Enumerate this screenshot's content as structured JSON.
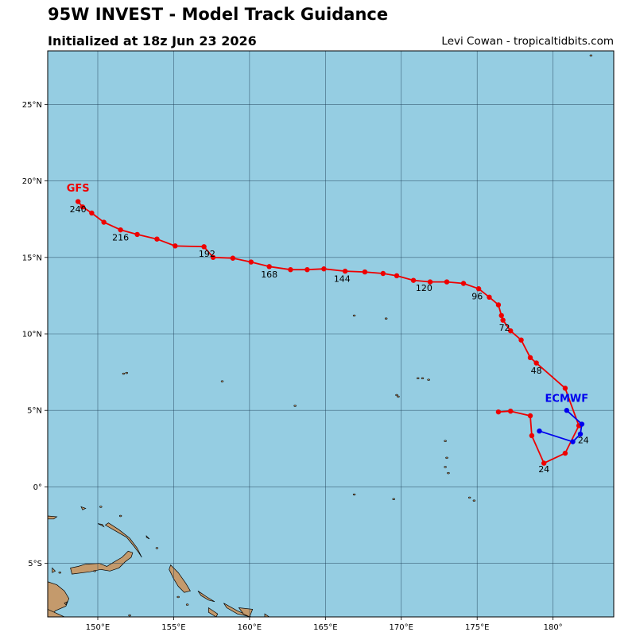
{
  "header": {
    "title": "95W INVEST - Model Track Guidance",
    "subtitle": "Initialized at 18z Jun 23 2026",
    "credit": "Levi Cowan - tropicaltidbits.com"
  },
  "colors": {
    "ocean": "#95cde2",
    "land": "#c49a6c",
    "gfs": "#ee0000",
    "ecmwf": "#0000ee",
    "grid": "#1f3f55"
  },
  "chart_data": {
    "type": "map-track",
    "lon_range": [
      146.7,
      184.0
    ],
    "lat_range": [
      -8.5,
      28.5
    ],
    "lon_ticks": [
      {
        "value": 150,
        "label": "150°E"
      },
      {
        "value": 155,
        "label": "155°E"
      },
      {
        "value": 160,
        "label": "160°E"
      },
      {
        "value": 165,
        "label": "165°E"
      },
      {
        "value": 170,
        "label": "170°E"
      },
      {
        "value": 175,
        "label": "175°E"
      },
      {
        "value": 180,
        "label": "180°"
      }
    ],
    "lat_ticks": [
      {
        "value": -5,
        "label": "5°S"
      },
      {
        "value": 0,
        "label": "0°"
      },
      {
        "value": 5,
        "label": "5°N"
      },
      {
        "value": 10,
        "label": "10°N"
      },
      {
        "value": 15,
        "label": "15°N"
      },
      {
        "value": 20,
        "label": "20°N"
      },
      {
        "value": 25,
        "label": "25°N"
      }
    ],
    "grid": true,
    "series": [
      {
        "name": "GFS",
        "color": "#ee0000",
        "points": [
          [
            176.4,
            4.9
          ],
          [
            177.2,
            4.95
          ],
          [
            178.5,
            4.65
          ],
          [
            178.6,
            3.35
          ],
          [
            179.4,
            1.55
          ],
          [
            180.8,
            2.2
          ],
          [
            181.7,
            4.0
          ],
          [
            180.8,
            6.45
          ],
          [
            178.9,
            8.1
          ],
          [
            178.5,
            8.45
          ],
          [
            177.9,
            9.6
          ],
          [
            177.2,
            10.2
          ],
          [
            176.7,
            10.9
          ],
          [
            176.6,
            11.2
          ],
          [
            176.4,
            11.9
          ],
          [
            175.8,
            12.4
          ],
          [
            175.1,
            12.95
          ],
          [
            174.1,
            13.3
          ],
          [
            173.0,
            13.4
          ],
          [
            171.9,
            13.4
          ],
          [
            170.8,
            13.5
          ],
          [
            169.7,
            13.8
          ],
          [
            168.8,
            13.95
          ],
          [
            167.6,
            14.05
          ],
          [
            166.3,
            14.1
          ],
          [
            164.9,
            14.25
          ],
          [
            163.8,
            14.2
          ],
          [
            162.7,
            14.2
          ],
          [
            161.3,
            14.4
          ],
          [
            160.1,
            14.7
          ],
          [
            158.9,
            14.95
          ],
          [
            157.6,
            15.0
          ],
          [
            157.0,
            15.7
          ],
          [
            155.1,
            15.75
          ],
          [
            153.9,
            16.2
          ],
          [
            152.6,
            16.5
          ],
          [
            151.5,
            16.8
          ],
          [
            150.4,
            17.3
          ],
          [
            149.6,
            17.9
          ],
          [
            149.0,
            18.3
          ],
          [
            148.7,
            18.65
          ]
        ],
        "labels": [
          {
            "text": "24",
            "lon": 179.4,
            "lat": 0.95
          },
          {
            "text": "48",
            "lon": 178.9,
            "lat": 7.4
          },
          {
            "text": "72",
            "lon": 176.8,
            "lat": 10.2
          },
          {
            "text": "96",
            "lon": 175.0,
            "lat": 12.25
          },
          {
            "text": "120",
            "lon": 171.5,
            "lat": 12.8
          },
          {
            "text": "144",
            "lon": 166.1,
            "lat": 13.4
          },
          {
            "text": "168",
            "lon": 161.3,
            "lat": 13.7
          },
          {
            "text": "192",
            "lon": 157.2,
            "lat": 15.05
          },
          {
            "text": "216",
            "lon": 151.5,
            "lat": 16.1
          },
          {
            "text": "240",
            "lon": 148.7,
            "lat": 17.95
          }
        ],
        "model_label": {
          "text": "GFS",
          "lon": 148.7,
          "lat": 19.3
        }
      },
      {
        "name": "ECMWF",
        "color": "#0000ee",
        "points": [
          [
            180.9,
            5.0
          ],
          [
            181.9,
            4.1
          ],
          [
            181.8,
            3.45
          ],
          [
            181.3,
            2.95
          ],
          [
            179.1,
            3.65
          ]
        ],
        "labels": [
          {
            "text": "24",
            "lon": 182.0,
            "lat": 2.85
          }
        ],
        "model_label": {
          "text": "ECMWF",
          "lon": 180.9,
          "lat": 5.55
        }
      }
    ]
  },
  "land": {
    "islands": [
      [
        [
          146.7,
          -6.2
        ],
        [
          147.3,
          -6.4
        ],
        [
          147.8,
          -6.8
        ],
        [
          148.1,
          -7.3
        ],
        [
          147.9,
          -7.8
        ],
        [
          147.2,
          -8.1
        ],
        [
          146.9,
          -8.5
        ],
        [
          146.7,
          -8.5
        ]
      ],
      [
        [
          146.7,
          -8.0
        ],
        [
          147.8,
          -8.5
        ],
        [
          146.7,
          -8.5
        ]
      ],
      [
        [
          148.3,
          -5.7
        ],
        [
          149.5,
          -5.55
        ],
        [
          150.2,
          -5.4
        ],
        [
          150.8,
          -5.5
        ],
        [
          151.4,
          -5.3
        ],
        [
          151.8,
          -4.9
        ],
        [
          152.2,
          -4.6
        ],
        [
          152.3,
          -4.3
        ],
        [
          152.0,
          -4.2
        ],
        [
          151.6,
          -4.6
        ],
        [
          151.0,
          -4.95
        ],
        [
          150.6,
          -5.2
        ],
        [
          150.1,
          -5.0
        ],
        [
          149.2,
          -5.05
        ],
        [
          148.7,
          -5.2
        ],
        [
          148.2,
          -5.3
        ]
      ],
      [
        [
          150.5,
          -2.5
        ],
        [
          151.2,
          -2.9
        ],
        [
          151.9,
          -3.3
        ],
        [
          152.4,
          -3.9
        ],
        [
          152.7,
          -4.3
        ],
        [
          152.9,
          -4.6
        ],
        [
          152.6,
          -4.0
        ],
        [
          152.1,
          -3.35
        ],
        [
          151.4,
          -2.8
        ],
        [
          150.7,
          -2.35
        ]
      ],
      [
        [
          146.7,
          -1.9
        ],
        [
          147.3,
          -1.95
        ],
        [
          147.1,
          -2.1
        ],
        [
          146.7,
          -2.1
        ]
      ],
      [
        [
          150.0,
          -2.4
        ],
        [
          150.4,
          -2.6
        ],
        [
          150.3,
          -2.45
        ]
      ],
      [
        [
          154.8,
          -5.1
        ],
        [
          155.3,
          -5.6
        ],
        [
          155.8,
          -6.3
        ],
        [
          156.1,
          -6.8
        ],
        [
          155.7,
          -6.9
        ],
        [
          155.3,
          -6.5
        ],
        [
          155.0,
          -6.0
        ],
        [
          154.7,
          -5.4
        ]
      ],
      [
        [
          156.6,
          -6.8
        ],
        [
          157.2,
          -7.2
        ],
        [
          157.7,
          -7.5
        ],
        [
          157.3,
          -7.4
        ],
        [
          156.8,
          -7.1
        ]
      ],
      [
        [
          157.3,
          -7.9
        ],
        [
          157.9,
          -8.3
        ],
        [
          157.8,
          -8.5
        ],
        [
          157.3,
          -8.2
        ]
      ],
      [
        [
          158.3,
          -7.6
        ],
        [
          159.2,
          -8.1
        ],
        [
          159.9,
          -8.4
        ],
        [
          160.1,
          -8.5
        ],
        [
          159.2,
          -8.3
        ],
        [
          158.5,
          -7.9
        ]
      ],
      [
        [
          159.3,
          -7.9
        ],
        [
          160.2,
          -8.0
        ],
        [
          160.0,
          -8.5
        ],
        [
          159.6,
          -8.3
        ]
      ],
      [
        [
          153.2,
          -3.2
        ],
        [
          153.4,
          -3.4
        ],
        [
          153.2,
          -3.3
        ]
      ],
      [
        [
          148.9,
          -1.3
        ],
        [
          149.2,
          -1.4
        ],
        [
          149.0,
          -1.5
        ]
      ],
      [
        [
          161.0,
          -8.3
        ],
        [
          161.3,
          -8.5
        ],
        [
          161.0,
          -8.5
        ]
      ],
      [
        [
          147.8,
          -7.6
        ],
        [
          148.0,
          -7.5
        ],
        [
          147.9,
          -7.7
        ]
      ],
      [
        [
          147.0,
          -5.3
        ],
        [
          147.2,
          -5.5
        ],
        [
          147.0,
          -5.6
        ]
      ]
    ],
    "islets": [
      [
        149.8,
        -5.5
      ],
      [
        147.5,
        -5.6
      ],
      [
        155.9,
        -7.7
      ],
      [
        155.3,
        -7.2
      ],
      [
        153.9,
        -4.0
      ],
      [
        151.5,
        -1.9
      ],
      [
        150.2,
        -1.3
      ],
      [
        152.1,
        -8.4
      ],
      [
        151.7,
        7.4
      ],
      [
        151.9,
        7.45
      ],
      [
        158.2,
        6.9
      ],
      [
        163.0,
        5.3
      ],
      [
        166.9,
        11.2
      ],
      [
        169.0,
        11.0
      ],
      [
        169.7,
        6.0
      ],
      [
        169.8,
        5.9
      ],
      [
        171.1,
        7.1
      ],
      [
        171.4,
        7.1
      ],
      [
        171.8,
        7.0
      ],
      [
        172.9,
        3.0
      ],
      [
        173.0,
        1.9
      ],
      [
        172.9,
        1.3
      ],
      [
        173.1,
        0.9
      ],
      [
        174.5,
        -0.7
      ],
      [
        174.8,
        -0.9
      ],
      [
        166.9,
        -0.5
      ],
      [
        169.5,
        -0.8
      ],
      [
        182.5,
        28.2
      ]
    ]
  }
}
